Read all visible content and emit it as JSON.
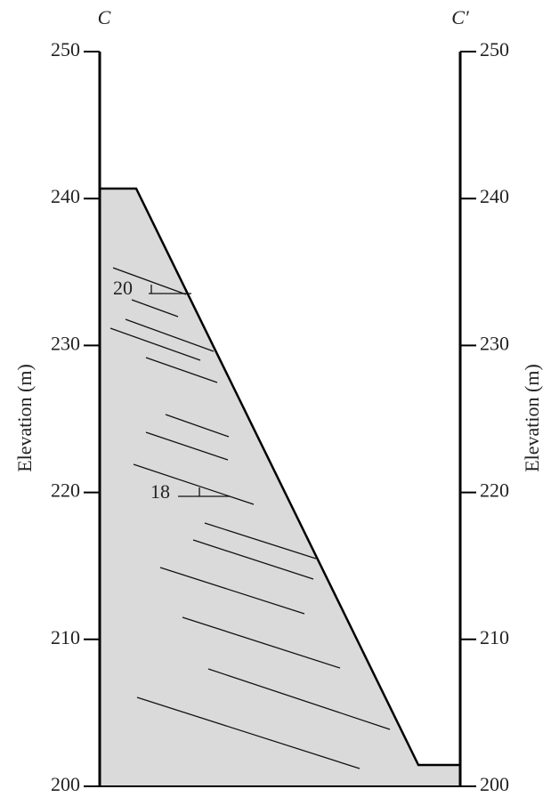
{
  "section": {
    "left_label": "C",
    "right_label": "C′"
  },
  "left_axis": {
    "title": "Elevation (m)",
    "ticks": [
      250,
      240,
      230,
      220,
      210,
      200
    ]
  },
  "right_axis": {
    "title": "Elevation (m)",
    "ticks": [
      250,
      240,
      230,
      220,
      210,
      200
    ]
  },
  "dips": [
    {
      "label": "20"
    },
    {
      "label": "18"
    }
  ]
}
